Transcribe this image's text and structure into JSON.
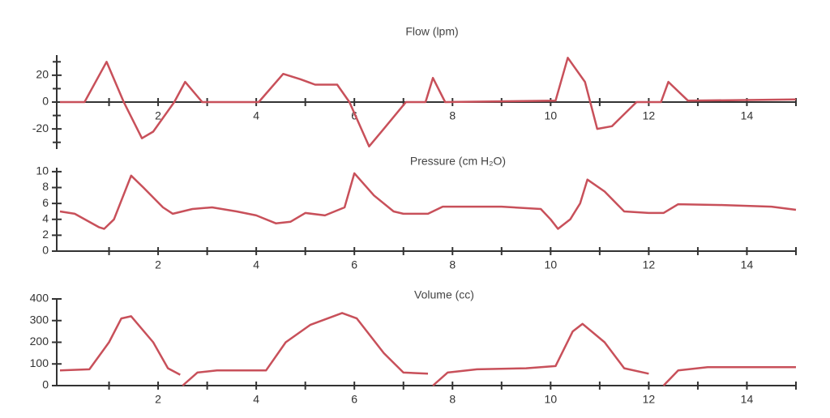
{
  "chart_data": [
    {
      "type": "line",
      "title": "Flow (lpm)",
      "color": "#c8505a",
      "xlim": [
        0,
        15
      ],
      "xticks": [
        2,
        4,
        6,
        8,
        10,
        12,
        14
      ],
      "xminor_ticks": [
        1,
        3,
        5,
        7,
        9,
        11,
        13,
        15
      ],
      "ylim": [
        -35,
        35
      ],
      "yticks": [
        -20,
        0,
        20
      ],
      "yminor_ticks": [
        -30,
        -10,
        10,
        30
      ],
      "x": [
        0,
        0.5,
        0.95,
        1.3,
        1.67,
        1.9,
        2.33,
        2.55,
        2.9,
        4.05,
        4.55,
        4.9,
        5.2,
        5.65,
        5.9,
        6.3,
        6.6,
        7.05,
        7.45,
        7.6,
        7.85,
        10.1,
        10.35,
        10.7,
        10.95,
        11.25,
        11.75,
        12.25,
        12.4,
        12.8,
        15
      ],
      "values": [
        0,
        0,
        30,
        0,
        -27,
        -22,
        0,
        15,
        0,
        0,
        21,
        17,
        13,
        13,
        0,
        -33,
        -20,
        0,
        0,
        18,
        0,
        1,
        33,
        15,
        -20,
        -18,
        0,
        0,
        15,
        1,
        2
      ]
    },
    {
      "type": "line",
      "title": "Pressure (cm H₂O)",
      "color": "#c8505a",
      "xlim": [
        0,
        15
      ],
      "xticks": [
        2,
        4,
        6,
        8,
        10,
        12,
        14
      ],
      "xminor_ticks": [
        1,
        3,
        5,
        7,
        9,
        11,
        13,
        15
      ],
      "ylim": [
        0,
        10.5
      ],
      "yticks": [
        0,
        2,
        4,
        6,
        8,
        10
      ],
      "x": [
        0,
        0.3,
        0.8,
        0.9,
        1.1,
        1.45,
        1.7,
        2.1,
        2.3,
        2.7,
        3.1,
        3.6,
        4.0,
        4.4,
        4.7,
        5.0,
        5.4,
        5.8,
        6.0,
        6.4,
        6.8,
        7.0,
        7.5,
        7.8,
        9.0,
        9.8,
        10.0,
        10.15,
        10.4,
        10.6,
        10.75,
        11.1,
        11.5,
        12.0,
        12.3,
        12.6,
        13.5,
        14.5,
        15
      ],
      "values": [
        5,
        4.7,
        3,
        2.8,
        4,
        9.5,
        8,
        5.5,
        4.7,
        5.3,
        5.5,
        5,
        4.5,
        3.5,
        3.7,
        4.8,
        4.5,
        5.5,
        9.8,
        7,
        5,
        4.7,
        4.7,
        5.6,
        5.6,
        5.3,
        4,
        2.8,
        4,
        6,
        9,
        7.5,
        5,
        4.8,
        4.8,
        5.9,
        5.8,
        5.6,
        5.2
      ]
    },
    {
      "type": "line",
      "title": "Volume (cc)",
      "color": "#c8505a",
      "xlim": [
        0,
        15
      ],
      "xticks": [
        2,
        4,
        6,
        8,
        10,
        12,
        14
      ],
      "xminor_ticks": [
        1,
        3,
        5,
        7,
        9,
        11,
        13,
        15
      ],
      "ylim": [
        0,
        400
      ],
      "yticks": [
        0,
        100,
        200,
        300,
        400
      ],
      "x": [
        0,
        0.6,
        1.0,
        1.25,
        1.45,
        1.9,
        2.2,
        2.45,
        2.47,
        2.5,
        2.8,
        3.2,
        4.2,
        4.6,
        5.1,
        5.75,
        6.05,
        6.6,
        7.0,
        7.5,
        7.55,
        7.6,
        7.9,
        8.5,
        9.5,
        10.1,
        10.45,
        10.65,
        11.1,
        11.5,
        12.0,
        12.15,
        12.3,
        12.6,
        13.2,
        15
      ],
      "values": [
        70,
        75,
        200,
        310,
        320,
        200,
        80,
        50,
        null,
        0,
        60,
        70,
        70,
        200,
        280,
        335,
        310,
        150,
        60,
        55,
        null,
        0,
        60,
        75,
        80,
        90,
        250,
        285,
        200,
        80,
        55,
        null,
        0,
        70,
        85,
        85
      ]
    }
  ]
}
